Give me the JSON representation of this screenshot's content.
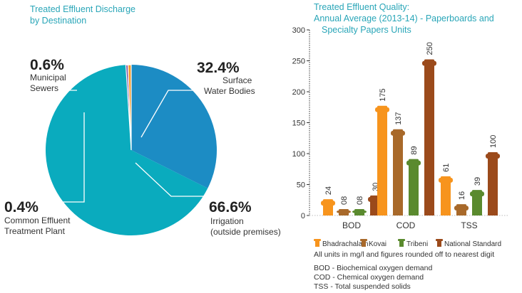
{
  "chart_data": [
    {
      "type": "pie",
      "title_lines": [
        "Treated Effluent Discharge",
        "by Destination"
      ],
      "slices": [
        {
          "name_lines": [
            "Surface",
            "Water Bodies"
          ],
          "value": 32.4,
          "label": "32.4%",
          "color": "#1c8cc4"
        },
        {
          "name_lines": [
            "Irrigation",
            "(outside premises)"
          ],
          "value": 66.6,
          "label": "66.6%",
          "color": "#0aabbe"
        },
        {
          "name_lines": [
            "Common Effluent",
            "Treatment Plant"
          ],
          "value": 0.4,
          "label": "0.4%",
          "color": "#7b4a9d"
        },
        {
          "name_lines": [
            "Municipal",
            "Sewers"
          ],
          "value": 0.6,
          "label": "0.6%",
          "color": "#f39a2b"
        }
      ]
    },
    {
      "type": "bar",
      "title_lines": [
        "Treated Effluent Quality:",
        "Annual Average (2013-14) - Paperboards and",
        "Specialty Papers Units"
      ],
      "categories": [
        "BOD",
        "COD",
        "TSS"
      ],
      "series": [
        {
          "name": "Bhadrachalam",
          "color": "#f7941d",
          "values": [
            24,
            175,
            61
          ],
          "labels": [
            "24",
            "175",
            "61"
          ]
        },
        {
          "name": "Kovai",
          "color": "#a8692a",
          "values": [
            8,
            137,
            16
          ],
          "labels": [
            "08",
            "137",
            "16"
          ]
        },
        {
          "name": "Tribeni",
          "color": "#5a8a2e",
          "values": [
            8,
            89,
            39
          ],
          "labels": [
            "08",
            "89",
            "39"
          ]
        },
        {
          "name": "National Standard",
          "color": "#9b4a1b",
          "values": [
            30,
            250,
            100
          ],
          "labels": [
            "30",
            "250",
            "100"
          ]
        }
      ],
      "ylim": [
        0,
        300
      ],
      "yticks": [
        "0",
        "50",
        "100",
        "150",
        "200",
        "250",
        "300"
      ],
      "notes": [
        "All units in mg/l and figures rounded off to nearest digit",
        "BOD - Biochemical oxygen demand",
        "COD - Chemical oxygen demand",
        "TSS - Total suspended solids"
      ]
    }
  ]
}
